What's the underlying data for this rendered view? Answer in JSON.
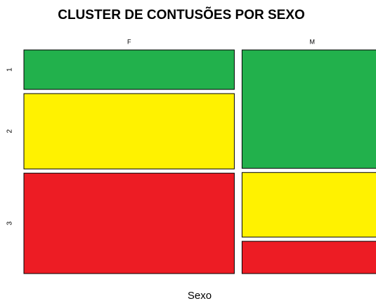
{
  "chart_data": {
    "type": "mosaic",
    "title": "CLUSTER DE CONTUSÕES POR SEXO",
    "x_label": "Sexo",
    "categories": [
      "F",
      "M"
    ],
    "series": [
      {
        "name": "1",
        "color": "#22b14c",
        "values": [
          11,
          22
        ]
      },
      {
        "name": "2",
        "color": "#fff200",
        "values": [
          21,
          12
        ]
      },
      {
        "name": "3",
        "color": "#ed1c24",
        "values": [
          28,
          6
        ]
      }
    ]
  }
}
